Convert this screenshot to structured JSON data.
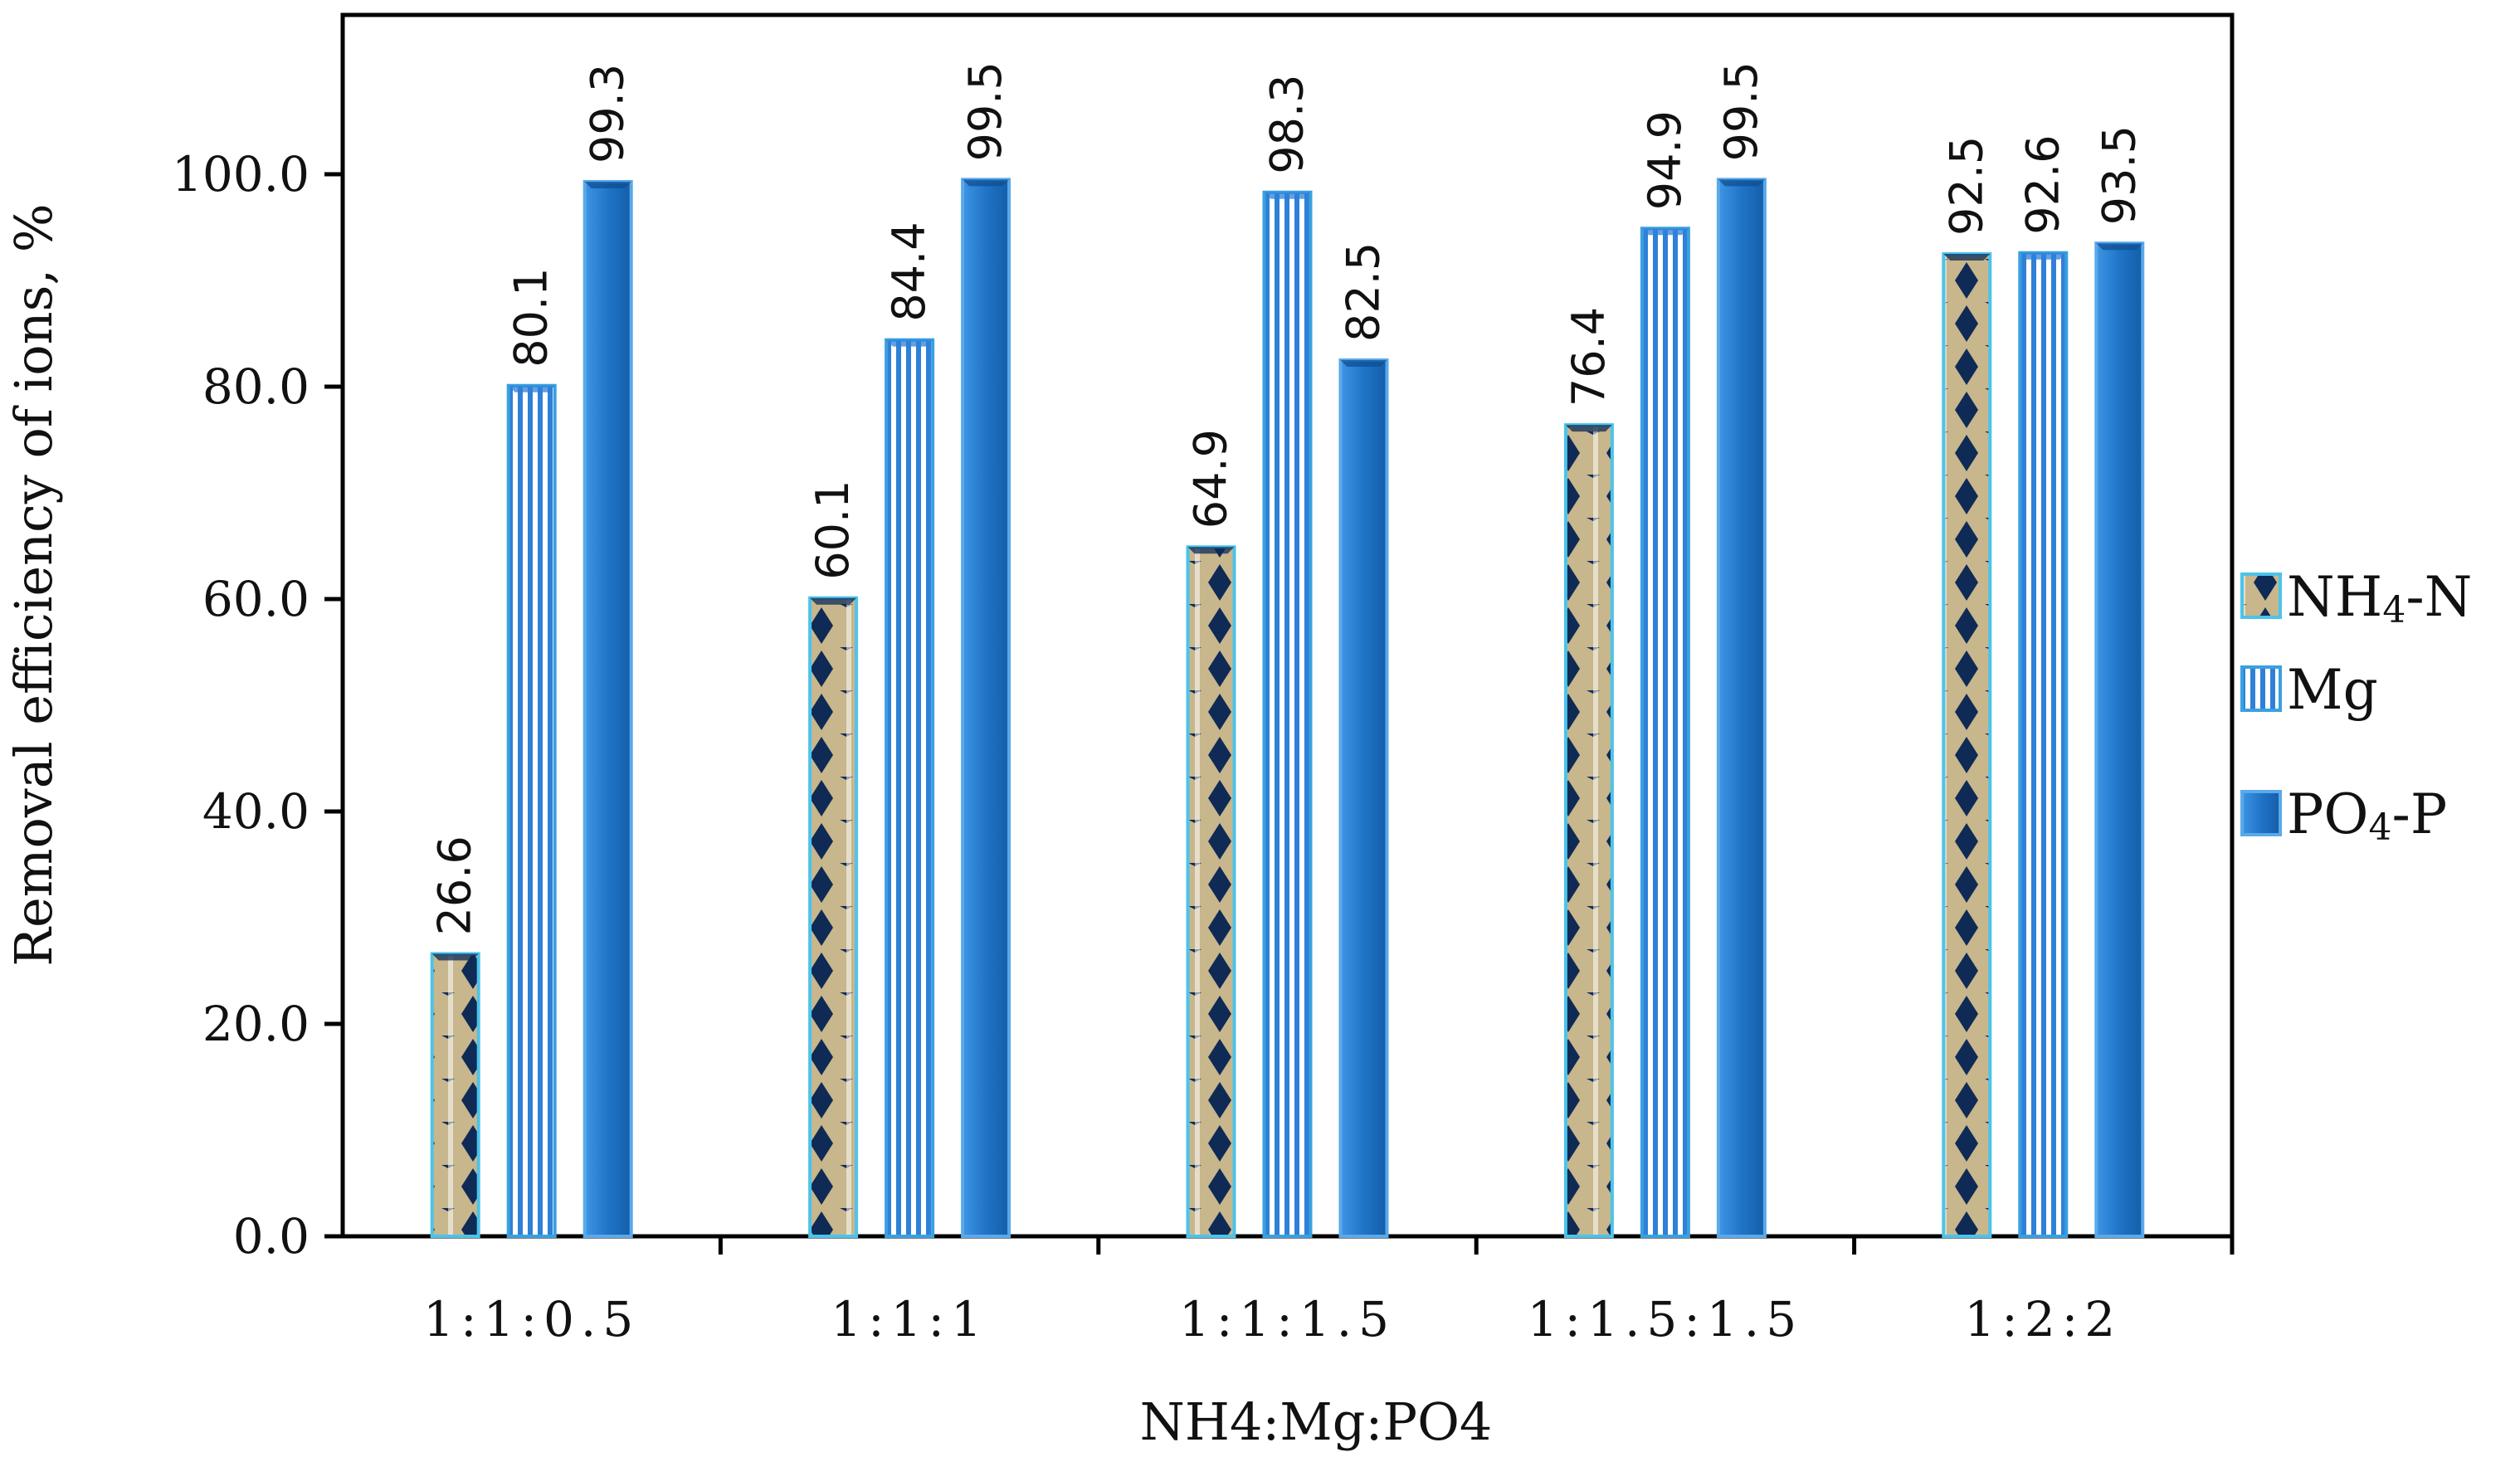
{
  "chart_data": {
    "type": "bar",
    "title": "",
    "xlabel": "NH4:Mg:PO4",
    "ylabel": "Removal efficiency of ions, %",
    "categories": [
      "1:1:0.5",
      "1:1:1",
      "1:1:1.5",
      "1:1.5:1.5",
      "1:2:2"
    ],
    "ylim": [
      0,
      115
    ],
    "yticks": [
      0,
      20,
      40,
      60,
      80,
      100
    ],
    "ytick_labels": [
      "0.0",
      "20.0",
      "40.0",
      "60.0",
      "80.0",
      "100.0"
    ],
    "grid": false,
    "legend_position": "right",
    "series": [
      {
        "name": "NH4-N",
        "legend_main": "NH",
        "legend_sub": "4",
        "legend_tail": "-N",
        "values": [
          26.6,
          60.1,
          64.9,
          76.4,
          92.5
        ],
        "labels": [
          "26.6",
          "60.1",
          "64.9",
          "76.4",
          "92.5"
        ],
        "pattern": "diamond",
        "colors": {
          "fill": "#c8b68c",
          "accent": "#0f2a55",
          "edge": "#4cc3ea"
        }
      },
      {
        "name": "Mg",
        "legend_main": "Mg",
        "legend_sub": "",
        "legend_tail": "",
        "values": [
          80.1,
          84.4,
          98.3,
          94.9,
          92.6
        ],
        "labels": [
          "80.1",
          "84.4",
          "98.3",
          "94.9",
          "92.6"
        ],
        "pattern": "vertical-stripes",
        "colors": {
          "fill": "#ffffff",
          "accent": "#2f80d8",
          "edge": "#3aa0e0"
        }
      },
      {
        "name": "PO4-P",
        "legend_main": "PO",
        "legend_sub": "4",
        "legend_tail": "-P",
        "values": [
          99.3,
          99.5,
          82.5,
          99.5,
          93.5
        ],
        "labels": [
          "99.3",
          "99.5",
          "82.5",
          "99.5",
          "93.5"
        ],
        "pattern": "solid",
        "colors": {
          "fill": "#1f74c7",
          "accent": "#0d4f93",
          "edge": "#5aa9ea"
        }
      }
    ]
  }
}
